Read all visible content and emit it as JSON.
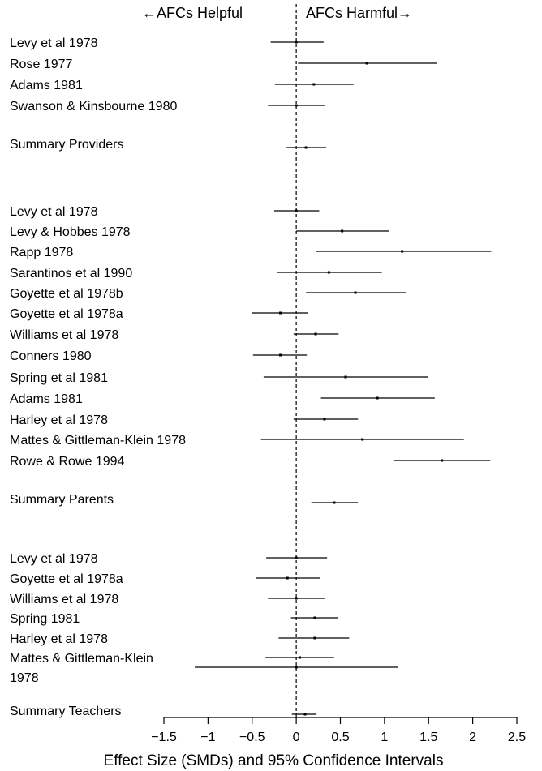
{
  "chart_data": {
    "type": "forest",
    "header": {
      "left": "←AFCs Helpful",
      "right": "AFCs Harmful→"
    },
    "xlabel": "Effect Size (SMDs) and 95% Confidence Intervals",
    "xlim": [
      -1.5,
      2.5
    ],
    "xticks": [
      "−1.5",
      "−1",
      "−0.5",
      "0",
      "0.5",
      "1",
      "1.5",
      "2",
      "2.5"
    ],
    "reference_line": 0,
    "groups": [
      {
        "studies": [
          {
            "label": "Levy et al 1978",
            "est": 0.0,
            "lo": -0.29,
            "hi": 0.31
          },
          {
            "label": "Rose 1977",
            "est": 0.8,
            "lo": 0.02,
            "hi": 1.59
          },
          {
            "label": "Adams 1981",
            "est": 0.2,
            "lo": -0.24,
            "hi": 0.65
          },
          {
            "label": "Swanson & Kinsbourne 1980",
            "est": 0.0,
            "lo": -0.32,
            "hi": 0.32
          }
        ],
        "summary": {
          "label": "Summary Providers",
          "est": 0.11,
          "lo": -0.11,
          "hi": 0.34
        }
      },
      {
        "studies": [
          {
            "label": "Levy et al 1978",
            "est": 0.0,
            "lo": -0.25,
            "hi": 0.26
          },
          {
            "label": "Levy & Hobbes 1978",
            "est": 0.52,
            "lo": 0.0,
            "hi": 1.05
          },
          {
            "label": "Rapp 1978",
            "est": 1.2,
            "lo": 0.22,
            "hi": 2.21
          },
          {
            "label": "Sarantinos et al 1990",
            "est": 0.37,
            "lo": -0.22,
            "hi": 0.97
          },
          {
            "label": "Goyette et al 1978b",
            "est": 0.67,
            "lo": 0.11,
            "hi": 1.25
          },
          {
            "label": "Goyette et al 1978a",
            "est": -0.18,
            "lo": -0.5,
            "hi": 0.13
          },
          {
            "label": "Williams et al 1978",
            "est": 0.22,
            "lo": -0.03,
            "hi": 0.48
          },
          {
            "label": "Conners 1980",
            "est": -0.18,
            "lo": -0.49,
            "hi": 0.12
          },
          {
            "label": "Spring et al 1981",
            "est": 0.56,
            "lo": -0.37,
            "hi": 1.49
          },
          {
            "label": "Adams 1981",
            "est": 0.92,
            "lo": 0.28,
            "hi": 1.57
          },
          {
            "label": "Harley et al 1978",
            "est": 0.32,
            "lo": -0.03,
            "hi": 0.7
          },
          {
            "label": "Mattes & Gittleman-Klein 1978",
            "est": 0.75,
            "lo": -0.4,
            "hi": 1.9
          },
          {
            "label": "Rowe & Rowe 1994",
            "est": 1.65,
            "lo": 1.1,
            "hi": 2.2
          }
        ],
        "summary": {
          "label": "Summary Parents",
          "est": 0.43,
          "lo": 0.17,
          "hi": 0.7
        }
      },
      {
        "studies": [
          {
            "label": "Levy et al 1978",
            "est": 0.0,
            "lo": -0.34,
            "hi": 0.35
          },
          {
            "label": "Goyette et al 1978a",
            "est": -0.1,
            "lo": -0.46,
            "hi": 0.27
          },
          {
            "label": "Williams et al 1978",
            "est": 0.0,
            "lo": -0.32,
            "hi": 0.32
          },
          {
            "label": "Spring 1981",
            "est": 0.21,
            "lo": -0.06,
            "hi": 0.47
          },
          {
            "label": "Harley et al 1978",
            "est": 0.21,
            "lo": -0.2,
            "hi": 0.6
          },
          {
            "label": "Mattes & Gittleman-Klein",
            "label2": "1978",
            "est": 0.04,
            "lo": -0.35,
            "hi": 0.43,
            "est2": 0.0,
            "lo2": -1.15,
            "hi2": 1.15
          }
        ],
        "summary": {
          "label": "Summary Teachers",
          "est": 0.1,
          "lo": -0.05,
          "hi": 0.23
        }
      }
    ]
  }
}
